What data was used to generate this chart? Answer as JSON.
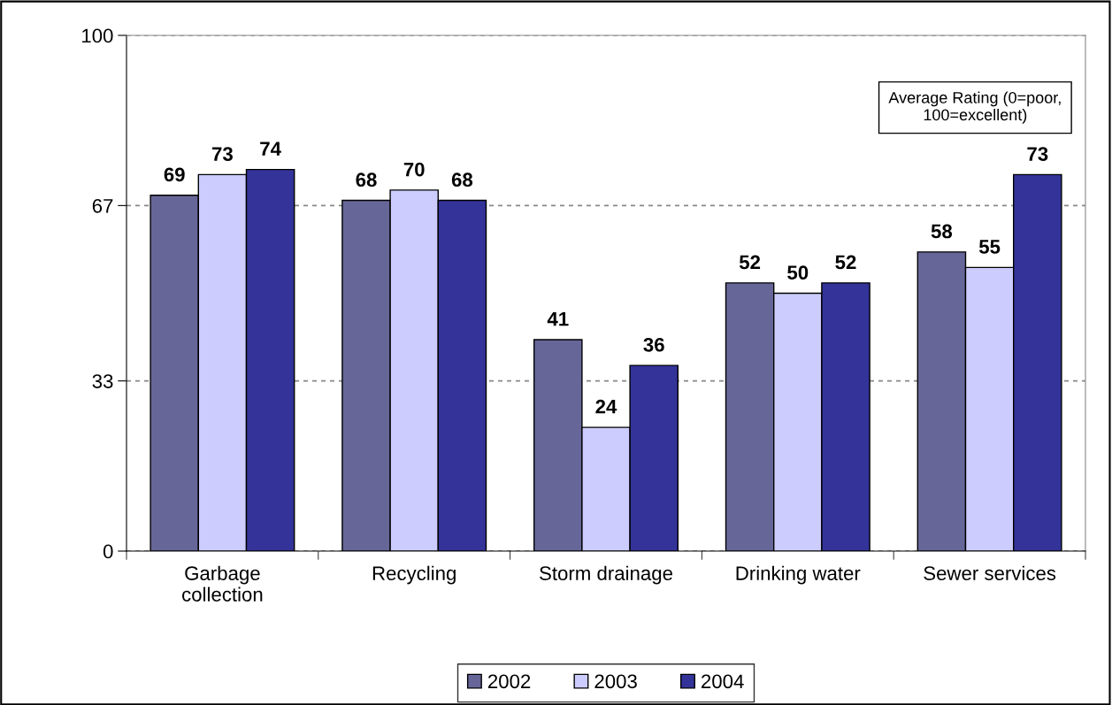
{
  "chart_data": {
    "type": "bar",
    "categories": [
      "Garbage\ncollection",
      "Recycling",
      "Storm drainage",
      "Drinking water",
      "Sewer services"
    ],
    "series": [
      {
        "name": "2002",
        "color": "#666699",
        "values": [
          69,
          68,
          41,
          52,
          58
        ]
      },
      {
        "name": "2003",
        "color": "#ccccff",
        "values": [
          73,
          70,
          24,
          50,
          55
        ]
      },
      {
        "name": "2004",
        "color": "#333399",
        "values": [
          74,
          68,
          36,
          52,
          73
        ]
      }
    ],
    "ylim": [
      0,
      100
    ],
    "yticks": [
      0,
      33,
      67,
      100
    ],
    "grid": "y",
    "legend": "bottom",
    "data_labels": true,
    "annotations": [
      "Average Rating (0=poor,\n100=excellent)"
    ]
  }
}
